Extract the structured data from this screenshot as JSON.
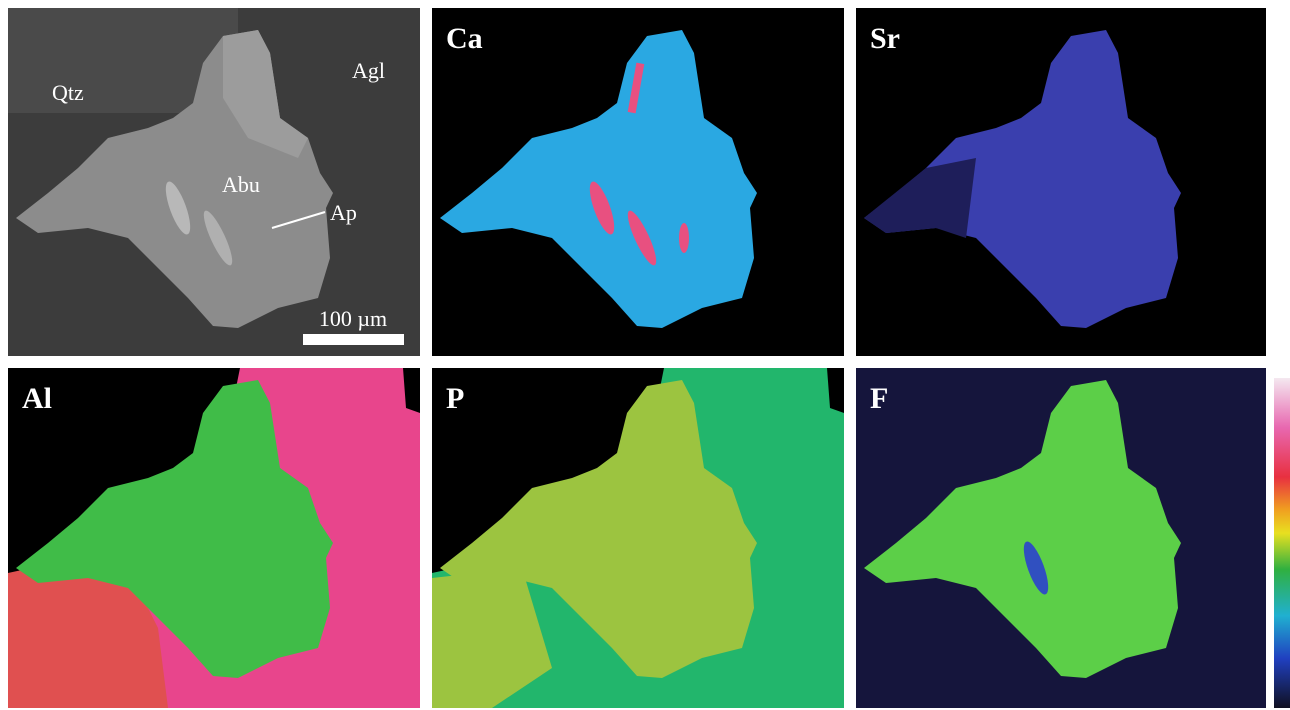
{
  "bse": {
    "labels": [
      "Qtz",
      "Agl",
      "Abu",
      "Ap"
    ],
    "scale_bar": "100 µm"
  },
  "maps": [
    "Ca",
    "Sr",
    "Al",
    "P",
    "F"
  ]
}
